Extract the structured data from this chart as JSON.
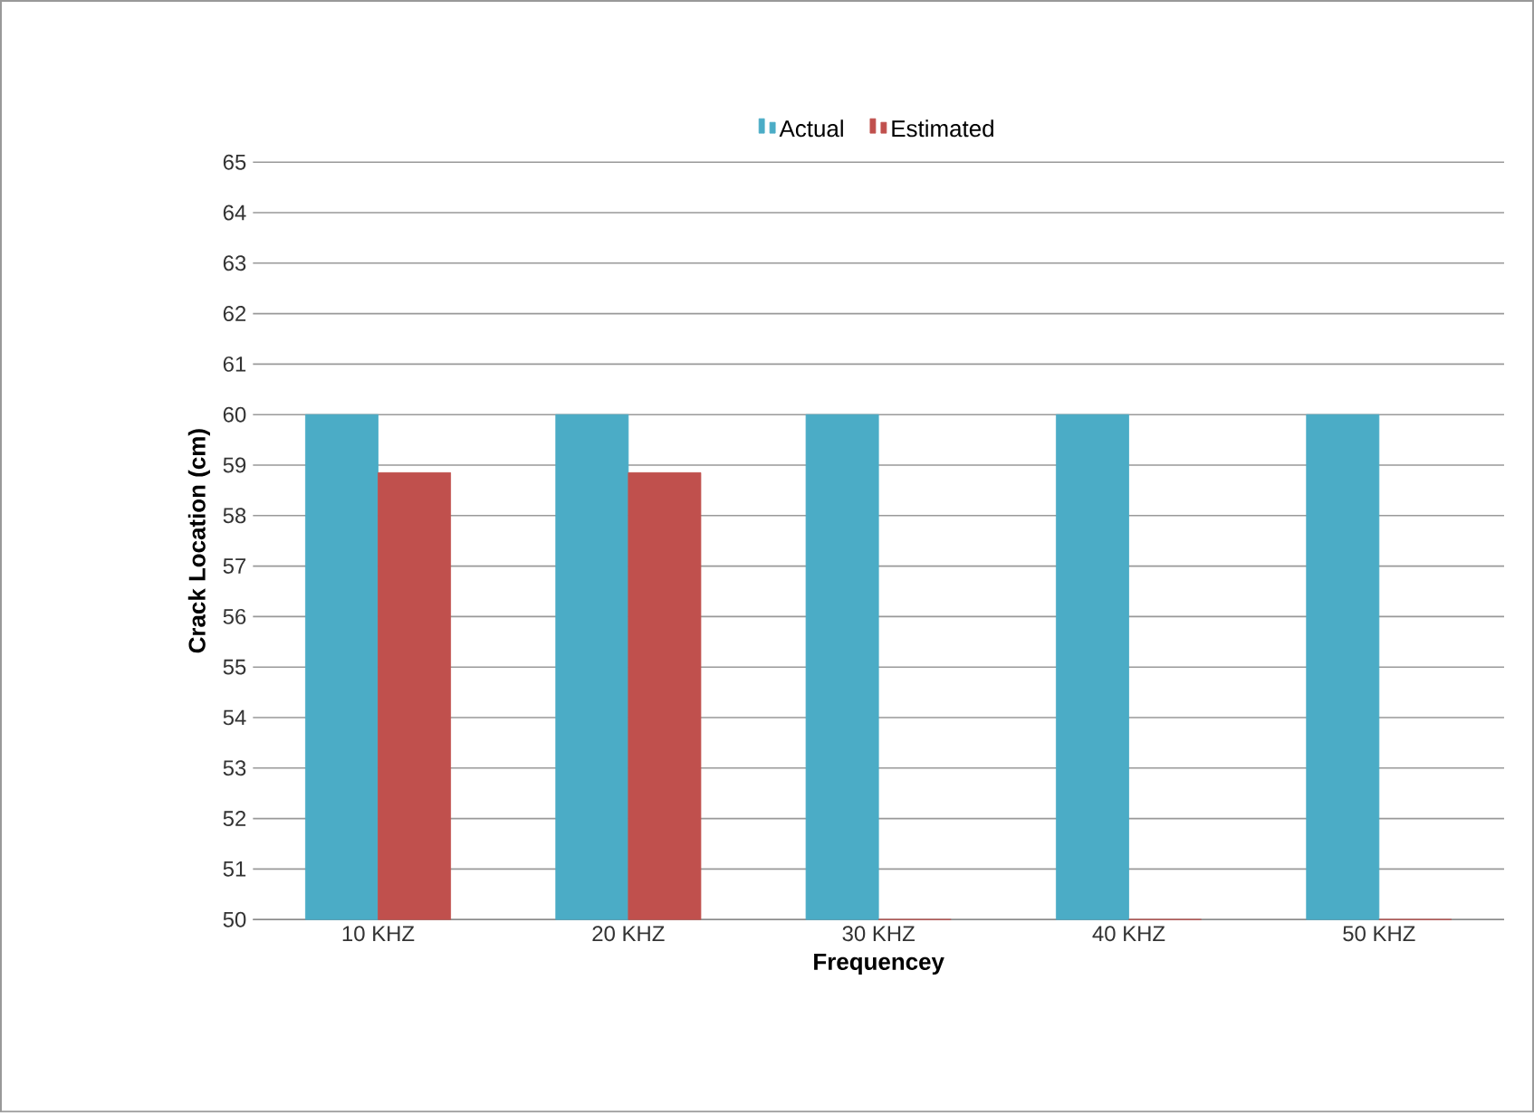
{
  "chart_data": {
    "type": "bar",
    "xlabel": "Frequencey",
    "ylabel": "Crack Location (cm)",
    "categories": [
      "10 KHZ",
      "20 KHZ",
      "30 KHZ",
      "40 KHZ",
      "50 KHZ"
    ],
    "series": [
      {
        "name": "Actual",
        "color": "#4bacc6",
        "values": [
          60,
          60,
          60,
          60,
          60
        ]
      },
      {
        "name": "Estimated",
        "color": "#c0504d",
        "values": [
          58.85,
          58.85,
          50,
          50,
          50
        ]
      }
    ],
    "ylim": [
      50,
      65
    ],
    "yticks": [
      50,
      51,
      52,
      53,
      54,
      55,
      56,
      57,
      58,
      59,
      60,
      61,
      62,
      63,
      64,
      65
    ],
    "grid": "y",
    "legend": "top"
  }
}
